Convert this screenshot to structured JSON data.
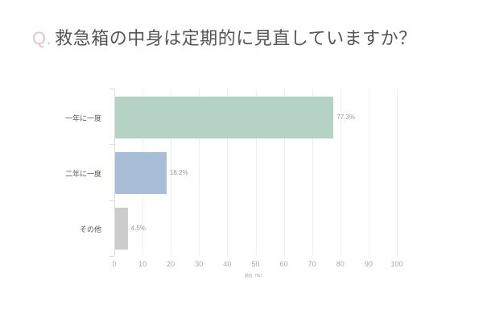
{
  "title": {
    "prefix": "Q.",
    "text": "救急箱の中身は定期的に見直していますか？"
  },
  "chart_data": {
    "type": "bar",
    "orientation": "horizontal",
    "title": "Q. 救急箱の中身は定期的に見直していますか？",
    "categories": [
      "一年に一度",
      "二年に一度",
      "その他"
    ],
    "values": [
      77.3,
      18.2,
      4.5
    ],
    "value_labels": [
      "77.3%",
      "18.2%",
      "4.5%"
    ],
    "colors": [
      "#b5d3c4",
      "#a8bdd8",
      "#cccccc"
    ],
    "xlabel": "割合（%）",
    "ylabel": "",
    "xlim": [
      0,
      100
    ],
    "xticks": [
      "0",
      "10",
      "20",
      "30",
      "40",
      "50",
      "60",
      "70",
      "80",
      "90",
      "100"
    ],
    "grid": true,
    "legend": null
  }
}
